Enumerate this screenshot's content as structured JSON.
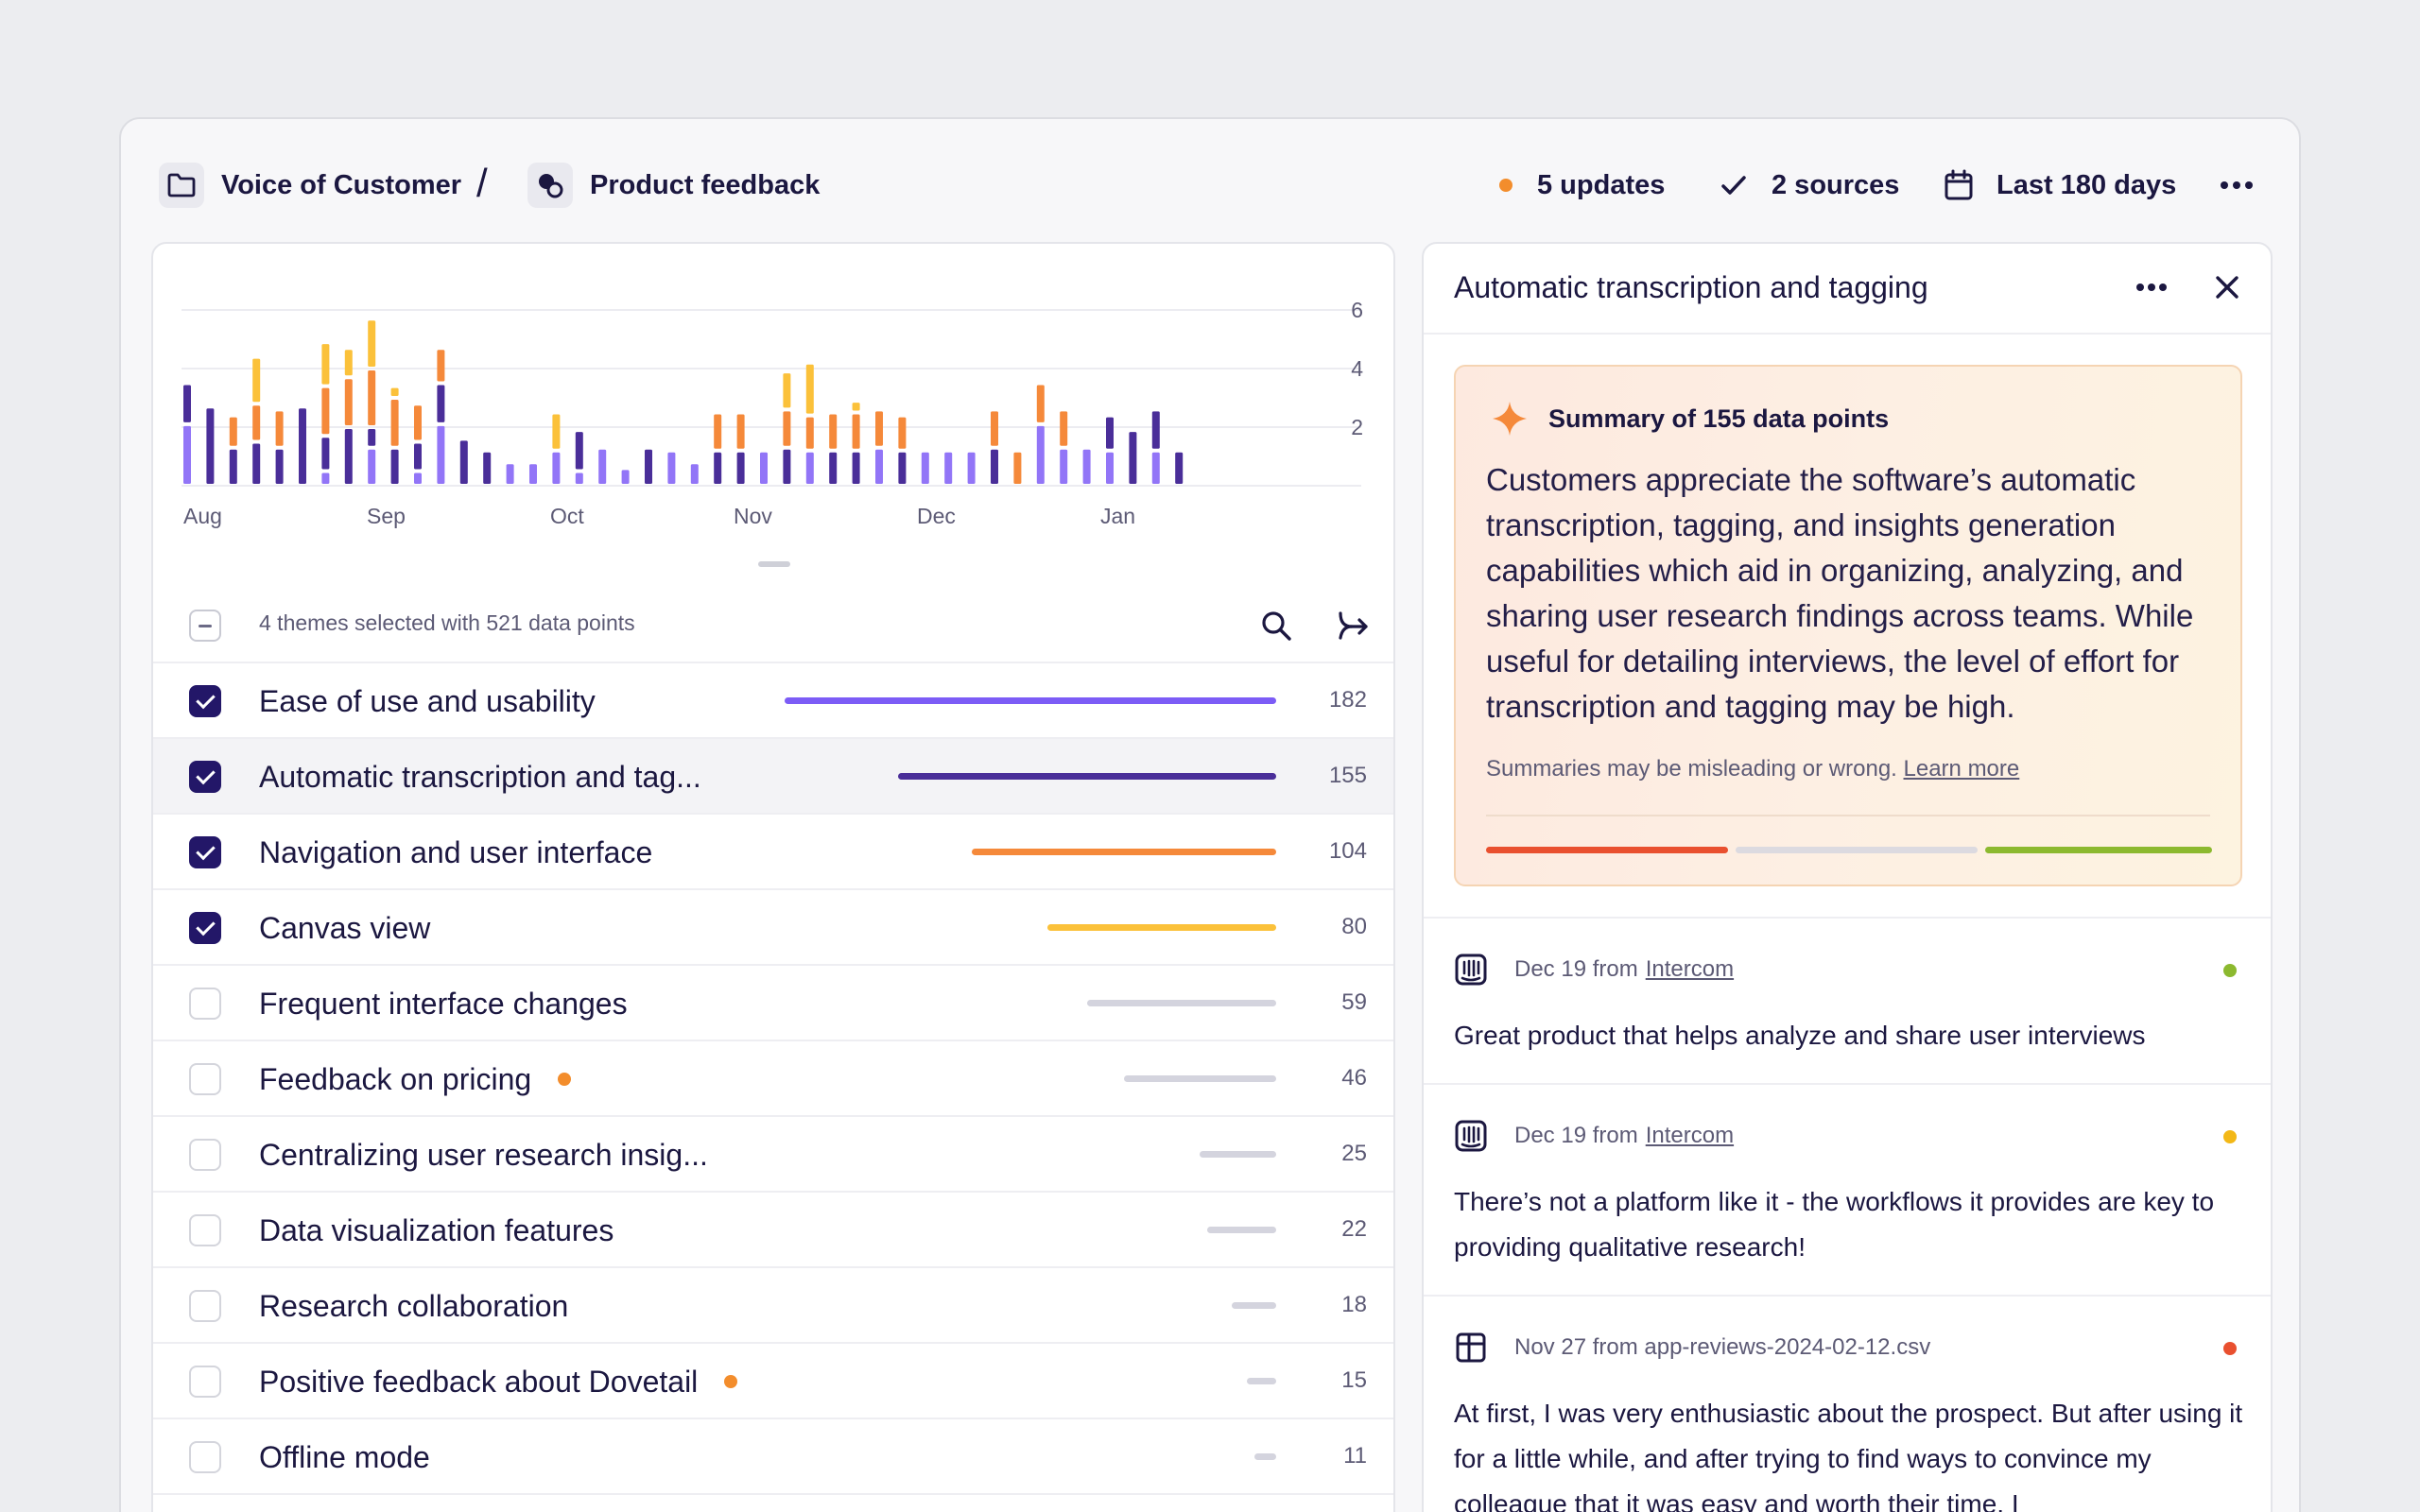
{
  "breadcrumb": {
    "folder": "Voice of Customer",
    "separator": "/",
    "project": "Product feedback"
  },
  "header": {
    "updates": "5 updates",
    "sources": "2 sources",
    "range": "Last 180 days"
  },
  "colors": {
    "dark_purple": "#4a2e99",
    "light_purple": "#9275f7",
    "orange": "#f5893a",
    "yellow": "#fbc13a",
    "grey": "#d4d4de",
    "accent": "#231768"
  },
  "chart_data": {
    "type": "bar",
    "stacked": true,
    "x_labels": [
      "Aug",
      "Sep",
      "Oct",
      "Nov",
      "Dec",
      "Jan"
    ],
    "y_ticks": [
      2,
      4,
      6
    ],
    "ylim": [
      0,
      6
    ],
    "grid": true,
    "series_order": [
      "Ease of use and usability",
      "Automatic transcription and tagging",
      "Navigation and user interface",
      "Canvas view"
    ],
    "points": [
      {
        "week": 0,
        "stack": [
          2.1,
          1.4
        ]
      },
      {
        "week": 1,
        "stack": [
          0,
          2.7
        ]
      },
      {
        "week": 2,
        "stack": [
          0,
          1.3,
          1.1
        ]
      },
      {
        "week": 3,
        "stack": [
          0,
          1.5,
          1.3,
          1.6
        ]
      },
      {
        "week": 4,
        "stack": [
          0,
          1.3,
          1.3
        ]
      },
      {
        "week": 5,
        "stack": [
          0,
          2.7
        ]
      },
      {
        "week": 6,
        "stack": [
          0.5,
          1.2,
          1.7,
          1.5
        ]
      },
      {
        "week": 7,
        "stack": [
          0,
          2.0,
          1.7,
          1.0
        ]
      },
      {
        "week": 8,
        "stack": [
          1.3,
          0.7,
          2.0,
          1.7
        ]
      },
      {
        "week": 9,
        "stack": [
          0,
          1.3,
          1.7,
          0.4
        ]
      },
      {
        "week": 10,
        "stack": [
          0.5,
          1.0,
          1.3
        ]
      },
      {
        "week": 11,
        "stack": [
          2.1,
          1.4,
          1.2
        ]
      },
      {
        "week": 12,
        "stack": [
          0,
          1.6
        ]
      },
      {
        "week": 13,
        "stack": [
          0,
          1.2
        ]
      },
      {
        "week": 14,
        "stack": [
          0.8
        ]
      },
      {
        "week": 15,
        "stack": [
          0.8
        ]
      },
      {
        "week": 16,
        "stack": [
          1.2,
          0,
          0,
          1.3
        ]
      },
      {
        "week": 17,
        "stack": [
          0.5,
          1.4
        ]
      },
      {
        "week": 18,
        "stack": [
          1.3
        ]
      },
      {
        "week": 19,
        "stack": [
          0.6
        ]
      },
      {
        "week": 20,
        "stack": [
          0,
          1.3
        ]
      },
      {
        "week": 21,
        "stack": [
          1.2
        ]
      },
      {
        "week": 22,
        "stack": [
          0.8
        ]
      },
      {
        "week": 23,
        "stack": [
          0,
          1.2,
          1.3
        ]
      },
      {
        "week": 24,
        "stack": [
          0,
          1.2,
          1.3
        ]
      },
      {
        "week": 25,
        "stack": [
          1.2
        ]
      },
      {
        "week": 26,
        "stack": [
          0,
          1.3,
          1.3,
          1.3
        ]
      },
      {
        "week": 27,
        "stack": [
          1.2,
          0,
          1.2,
          1.8
        ]
      },
      {
        "week": 28,
        "stack": [
          0,
          1.2,
          1.3
        ]
      },
      {
        "week": 29,
        "stack": [
          0,
          1.2,
          1.3,
          0.4
        ]
      },
      {
        "week": 30,
        "stack": [
          1.3,
          0,
          1.3
        ]
      },
      {
        "week": 31,
        "stack": [
          0,
          1.2,
          1.2
        ]
      },
      {
        "week": 32,
        "stack": [
          1.2
        ]
      },
      {
        "week": 33,
        "stack": [
          1.2
        ]
      },
      {
        "week": 34,
        "stack": [
          1.2
        ]
      },
      {
        "week": 35,
        "stack": [
          0,
          1.3,
          1.3
        ]
      },
      {
        "week": 36,
        "stack": [
          0,
          0,
          1.2
        ]
      },
      {
        "week": 37,
        "stack": [
          2.1,
          0,
          1.4
        ]
      },
      {
        "week": 38,
        "stack": [
          1.3,
          0,
          1.3
        ]
      },
      {
        "week": 39,
        "stack": [
          1.3
        ]
      },
      {
        "week": 40,
        "stack": [
          1.2,
          1.2
        ]
      },
      {
        "week": 41,
        "stack": [
          0,
          1.9
        ]
      },
      {
        "week": 42,
        "stack": [
          1.2,
          1.4
        ]
      },
      {
        "week": 43,
        "stack": [
          0,
          1.2
        ]
      }
    ]
  },
  "themes": {
    "selection_text": "4 themes selected with 521 data points",
    "rows": [
      {
        "label": "Ease of use and usability",
        "count": "182",
        "checked": true,
        "color": "#7c5cf6",
        "fraction": 1.0,
        "dot": false
      },
      {
        "label": "Automatic transcription and tag...",
        "count": "155",
        "checked": true,
        "color": "#4a2e99",
        "fraction": 0.77,
        "dot": false,
        "active": true
      },
      {
        "label": "Navigation and user interface",
        "count": "104",
        "checked": true,
        "color": "#f5893a",
        "fraction": 0.62,
        "dot": false
      },
      {
        "label": "Canvas view",
        "count": "80",
        "checked": true,
        "color": "#fbc13a",
        "fraction": 0.465,
        "dot": false
      },
      {
        "label": "Frequent interface changes",
        "count": "59",
        "checked": false,
        "color": "#d4d4de",
        "fraction": 0.385,
        "dot": false
      },
      {
        "label": "Feedback on pricing",
        "count": "46",
        "checked": false,
        "color": "#d4d4de",
        "fraction": 0.31,
        "dot": true
      },
      {
        "label": "Centralizing user research insig...",
        "count": "25",
        "checked": false,
        "color": "#d4d4de",
        "fraction": 0.155,
        "dot": false
      },
      {
        "label": "Data visualization features",
        "count": "22",
        "checked": false,
        "color": "#d4d4de",
        "fraction": 0.14,
        "dot": false
      },
      {
        "label": "Research collaboration",
        "count": "18",
        "checked": false,
        "color": "#d4d4de",
        "fraction": 0.09,
        "dot": false
      },
      {
        "label": "Positive feedback about Dovetail",
        "count": "15",
        "checked": false,
        "color": "#d4d4de",
        "fraction": 0.06,
        "dot": true
      },
      {
        "label": "Offline mode",
        "count": "11",
        "checked": false,
        "color": "#d4d4de",
        "fraction": 0.045,
        "dot": false
      },
      {
        "label": "Pricing model",
        "count": "9",
        "checked": false,
        "color": "#d4d4de",
        "fraction": 0.03,
        "dot": false
      }
    ]
  },
  "detail": {
    "title": "Automatic transcription and tagging",
    "summary_title": "Summary of 155 data points",
    "summary_body": "Customers appreciate the software’s automatic transcription, tagging, and insights generation capabilities which aid in organizing, analyzing, and sharing user research findings across teams. While useful for detailing interviews, the level of effort for transcription and tagging may be high.",
    "disclaimer": "Summaries may be misleading or wrong.",
    "learn_more": "Learn more",
    "sentiment": [
      {
        "color": "#e9502f"
      },
      {
        "color": "#dcdae0"
      },
      {
        "color": "#8cb92f"
      }
    ],
    "feed": [
      {
        "icon": "intercom-icon",
        "meta": "Dec 19 from",
        "source": "Intercom",
        "text": "Great product that helps analyze and share user interviews",
        "dot": "#8cb92f"
      },
      {
        "icon": "intercom-icon",
        "meta": "Dec 19 from",
        "source": "Intercom",
        "text": "There’s not a platform like it - the workflows it provides are key to providing qualitative research!",
        "dot": "#f3b817"
      },
      {
        "icon": "table-icon",
        "meta": "Nov 27 from app-reviews-2024-02-12.csv",
        "source": "",
        "text": "At first, I was very enthusiastic about the prospect. But after using it for a little while, and after trying to find ways to convince my colleague that it was easy and worth their time, I",
        "dot": "#e9502f"
      }
    ]
  }
}
